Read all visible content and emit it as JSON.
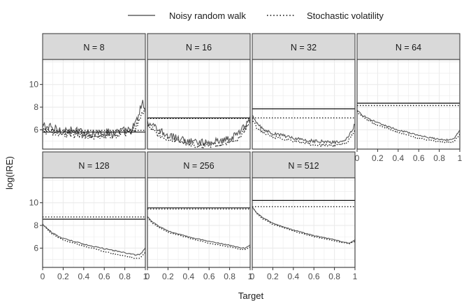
{
  "chart_data": {
    "type": "line",
    "layout": "faceted",
    "xlabel": "Target",
    "ylabel": "log(IRE)",
    "xlim": [
      0,
      1
    ],
    "ylim": [
      4.3,
      12.2
    ],
    "x_ticks": [
      0,
      0.2,
      0.4,
      0.6,
      0.8,
      1
    ],
    "x_tick_labels": [
      "0",
      "0.2",
      "0.4",
      "0.6",
      "0.8",
      "1"
    ],
    "y_ticks": [
      6,
      8,
      10
    ],
    "y_tick_labels": [
      "6",
      "8",
      "10"
    ],
    "legend": {
      "position": "top",
      "entries": [
        {
          "label": "Noisy random walk",
          "linestyle": "solid"
        },
        {
          "label": "Stochastic volatility",
          "linestyle": "dotted"
        }
      ]
    },
    "colors": {
      "panel_strip": "#d9d9d9",
      "grid": "#ebebeb",
      "curve": "#555555",
      "hline": "#111111"
    },
    "panels": [
      {
        "label": "N = 8",
        "hline_noisy": 5.8,
        "hline_sv": 5.95,
        "noise": 0.42,
        "noisy_curve": [
          [
            0,
            6.4
          ],
          [
            0.1,
            6.1
          ],
          [
            0.3,
            5.85
          ],
          [
            0.5,
            5.7
          ],
          [
            0.7,
            5.75
          ],
          [
            0.85,
            5.95
          ],
          [
            0.9,
            6.4
          ],
          [
            0.94,
            7.4
          ],
          [
            0.97,
            8.6
          ],
          [
            1,
            7.6
          ]
        ],
        "sv_curve": [
          [
            0,
            6.0
          ],
          [
            0.1,
            5.8
          ],
          [
            0.3,
            5.6
          ],
          [
            0.5,
            5.5
          ],
          [
            0.7,
            5.55
          ],
          [
            0.85,
            5.7
          ],
          [
            0.9,
            6.0
          ],
          [
            0.95,
            7.0
          ],
          [
            1,
            7.8
          ]
        ]
      },
      {
        "label": "N = 16",
        "hline_noisy": 7.05,
        "hline_sv": 7.0,
        "noise": 0.32,
        "noisy_curve": [
          [
            0,
            6.7
          ],
          [
            0.1,
            6.0
          ],
          [
            0.2,
            5.5
          ],
          [
            0.4,
            5.0
          ],
          [
            0.5,
            4.9
          ],
          [
            0.6,
            4.9
          ],
          [
            0.8,
            5.2
          ],
          [
            0.9,
            5.8
          ],
          [
            0.95,
            6.4
          ],
          [
            1,
            7.0
          ]
        ],
        "sv_curve": [
          [
            0,
            6.4
          ],
          [
            0.1,
            5.6
          ],
          [
            0.2,
            5.2
          ],
          [
            0.4,
            4.7
          ],
          [
            0.5,
            4.6
          ],
          [
            0.6,
            4.6
          ],
          [
            0.8,
            4.9
          ],
          [
            0.9,
            5.4
          ],
          [
            0.95,
            6.0
          ],
          [
            1,
            6.8
          ]
        ]
      },
      {
        "label": "N = 32",
        "hline_noisy": 7.85,
        "hline_sv": 7.05,
        "noise": 0.14,
        "noisy_curve": [
          [
            0,
            7.2
          ],
          [
            0.05,
            6.5
          ],
          [
            0.1,
            6.1
          ],
          [
            0.2,
            5.7
          ],
          [
            0.4,
            5.3
          ],
          [
            0.6,
            5.0
          ],
          [
            0.8,
            4.9
          ],
          [
            0.9,
            5.1
          ],
          [
            0.95,
            5.6
          ],
          [
            1,
            6.5
          ]
        ],
        "sv_curve": [
          [
            0,
            6.9
          ],
          [
            0.05,
            6.1
          ],
          [
            0.1,
            5.8
          ],
          [
            0.2,
            5.4
          ],
          [
            0.4,
            5.0
          ],
          [
            0.6,
            4.7
          ],
          [
            0.8,
            4.6
          ],
          [
            0.9,
            4.8
          ],
          [
            0.95,
            5.2
          ],
          [
            1,
            6.0
          ]
        ]
      },
      {
        "label": "N = 64",
        "hline_noisy": 8.35,
        "hline_sv": 8.15,
        "noise": 0.07,
        "noisy_curve": [
          [
            0,
            7.7
          ],
          [
            0.05,
            7.3
          ],
          [
            0.1,
            7.05
          ],
          [
            0.2,
            6.6
          ],
          [
            0.4,
            6.0
          ],
          [
            0.6,
            5.5
          ],
          [
            0.8,
            5.15
          ],
          [
            0.9,
            5.1
          ],
          [
            0.95,
            5.3
          ],
          [
            1,
            5.95
          ]
        ],
        "sv_curve": [
          [
            0,
            7.6
          ],
          [
            0.05,
            7.2
          ],
          [
            0.1,
            6.9
          ],
          [
            0.2,
            6.4
          ],
          [
            0.4,
            5.8
          ],
          [
            0.6,
            5.25
          ],
          [
            0.8,
            4.95
          ],
          [
            0.9,
            4.85
          ],
          [
            0.95,
            5.05
          ],
          [
            1,
            5.6
          ]
        ]
      },
      {
        "label": "N = 128",
        "hline_noisy": 8.55,
        "hline_sv": 8.75,
        "noise": 0.05,
        "noisy_curve": [
          [
            0,
            8.1
          ],
          [
            0.05,
            7.7
          ],
          [
            0.1,
            7.3
          ],
          [
            0.2,
            6.85
          ],
          [
            0.4,
            6.35
          ],
          [
            0.6,
            5.95
          ],
          [
            0.8,
            5.6
          ],
          [
            0.9,
            5.4
          ],
          [
            0.95,
            5.45
          ],
          [
            1,
            6.0
          ]
        ],
        "sv_curve": [
          [
            0,
            8.1
          ],
          [
            0.05,
            7.6
          ],
          [
            0.1,
            7.2
          ],
          [
            0.2,
            6.7
          ],
          [
            0.4,
            6.2
          ],
          [
            0.6,
            5.7
          ],
          [
            0.8,
            5.3
          ],
          [
            0.9,
            5.1
          ],
          [
            0.95,
            5.15
          ],
          [
            1,
            5.6
          ]
        ]
      },
      {
        "label": "N = 256",
        "hline_noisy": 9.55,
        "hline_sv": 9.45,
        "noise": 0.035,
        "noisy_curve": [
          [
            0,
            8.8
          ],
          [
            0.05,
            8.3
          ],
          [
            0.1,
            8.0
          ],
          [
            0.2,
            7.5
          ],
          [
            0.4,
            7.0
          ],
          [
            0.6,
            6.6
          ],
          [
            0.8,
            6.25
          ],
          [
            0.9,
            6.05
          ],
          [
            0.95,
            6.0
          ],
          [
            1,
            6.3
          ]
        ],
        "sv_curve": [
          [
            0,
            8.7
          ],
          [
            0.05,
            8.2
          ],
          [
            0.1,
            7.9
          ],
          [
            0.2,
            7.4
          ],
          [
            0.4,
            6.9
          ],
          [
            0.6,
            6.45
          ],
          [
            0.8,
            6.1
          ],
          [
            0.9,
            5.9
          ],
          [
            0.95,
            5.85
          ],
          [
            1,
            6.1
          ]
        ]
      },
      {
        "label": "N = 512",
        "hline_noisy": 10.2,
        "hline_sv": 9.65,
        "noise": 0.03,
        "noisy_curve": [
          [
            0,
            9.6
          ],
          [
            0.05,
            9.05
          ],
          [
            0.1,
            8.7
          ],
          [
            0.2,
            8.2
          ],
          [
            0.4,
            7.6
          ],
          [
            0.6,
            7.1
          ],
          [
            0.8,
            6.75
          ],
          [
            0.9,
            6.5
          ],
          [
            0.95,
            6.45
          ],
          [
            1,
            6.75
          ]
        ],
        "sv_curve": [
          [
            0,
            9.6
          ],
          [
            0.05,
            9.0
          ],
          [
            0.1,
            8.6
          ],
          [
            0.2,
            8.1
          ],
          [
            0.4,
            7.5
          ],
          [
            0.6,
            7.0
          ],
          [
            0.8,
            6.65
          ],
          [
            0.9,
            6.45
          ],
          [
            0.95,
            6.4
          ],
          [
            1,
            6.6
          ]
        ]
      }
    ]
  }
}
